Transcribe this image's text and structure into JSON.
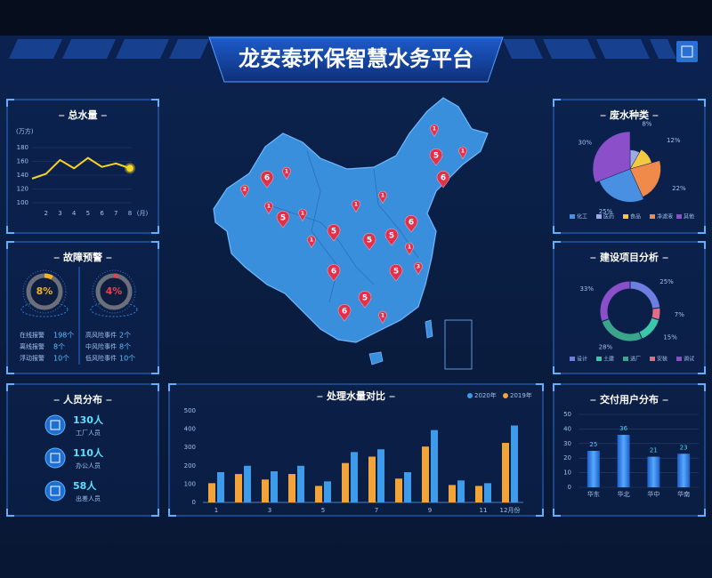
{
  "title": "龙安泰环保智慧水务平台",
  "chart_data": [
    {
      "type": "line",
      "title": "总水量",
      "y_label": "(万方)",
      "x_label": "(月)",
      "categories": [
        null,
        "2",
        "3",
        "4",
        "5",
        "6",
        "7",
        "8"
      ],
      "values": [
        135,
        142,
        162,
        150,
        165,
        152,
        157,
        150
      ],
      "color": "#f5d423",
      "ylim": [
        100,
        180
      ],
      "yticks": [
        100,
        120,
        140,
        160,
        180
      ],
      "grid": true
    },
    {
      "type": "pie",
      "rose": true,
      "title": "废水种类",
      "categories": [
        "化工",
        "医药",
        "食品",
        "净滤液",
        "其他"
      ],
      "values": [
        25,
        8,
        12,
        22,
        30
      ],
      "value_labels": [
        "25%",
        "8%",
        "12%",
        "22%",
        "30%"
      ],
      "colors": [
        "#4a90e2",
        "#9fa8e8",
        "#f5c842",
        "#f08a4b",
        "#8a4fc9"
      ]
    },
    {
      "type": "donut",
      "title": "建设项目分析",
      "categories": [
        "设计",
        "土建",
        "进厂",
        "安装",
        "调试"
      ],
      "values": [
        25,
        15,
        28,
        7,
        33
      ],
      "value_labels": [
        "25%",
        "15%",
        "28%",
        "7%",
        "33%"
      ],
      "colors": [
        "#6d7fe0",
        "#3cc7a8",
        "#3aa58a",
        "#e56b86",
        "#8a4fc9"
      ]
    },
    {
      "type": "bar",
      "title": "处理水量对比",
      "categories": [
        "1",
        null,
        "3",
        null,
        "5",
        null,
        "7",
        null,
        "9",
        null,
        "11",
        "12月份"
      ],
      "series": [
        {
          "name": "2020年",
          "color": "#3d9be9",
          "values": [
            165,
            200,
            170,
            200,
            115,
            275,
            290,
            165,
            395,
            120,
            105,
            420
          ]
        },
        {
          "name": "2019年",
          "color": "#f2a33a",
          "values": [
            105,
            155,
            125,
            155,
            90,
            215,
            250,
            130,
            305,
            95,
            90,
            325
          ]
        }
      ],
      "ylim": [
        0,
        500
      ],
      "yticks": [
        0,
        100,
        200,
        300,
        400,
        500
      ],
      "grid": false
    },
    {
      "type": "bar",
      "title": "交付用户分布",
      "categories": [
        "华东",
        "华北",
        "华中",
        "华南"
      ],
      "values": [
        25,
        36,
        21,
        23
      ],
      "color": "#2f7fe0",
      "label_color": "#3fd6ff",
      "ylim": [
        0,
        50
      ],
      "yticks": [
        0,
        10,
        20,
        30,
        40,
        50
      ],
      "grid": true
    }
  ],
  "fault_warning": {
    "title": "故障预警",
    "gauges": [
      {
        "value": 8,
        "label": "8%",
        "color": "#f5b223"
      },
      {
        "value": 4,
        "label": "4%",
        "color": "#e8414f"
      }
    ],
    "left": [
      {
        "label": "在线报警",
        "value": "198个"
      },
      {
        "label": "离线报警",
        "value": "8个"
      },
      {
        "label": "浮动报警",
        "value": "10个"
      }
    ],
    "right": [
      {
        "label": "高风险事件",
        "value": "2个"
      },
      {
        "label": "中风险事件",
        "value": "8个"
      },
      {
        "label": "低风险事件",
        "value": "10个"
      }
    ]
  },
  "staff": {
    "title": "人员分布",
    "items": [
      {
        "count": "130人",
        "label": "工厂人员"
      },
      {
        "count": "110人",
        "label": "办公人员"
      },
      {
        "count": "58人",
        "label": "出差人员"
      }
    ]
  },
  "map": {
    "pin_labels": [
      "6",
      "1",
      "2",
      "5",
      "1",
      "1",
      "5",
      "1",
      "5",
      "5",
      "6",
      "1",
      "5",
      "5",
      "6",
      "6",
      "1",
      "3",
      "5",
      "6",
      "1",
      "1",
      "1",
      "1"
    ]
  }
}
